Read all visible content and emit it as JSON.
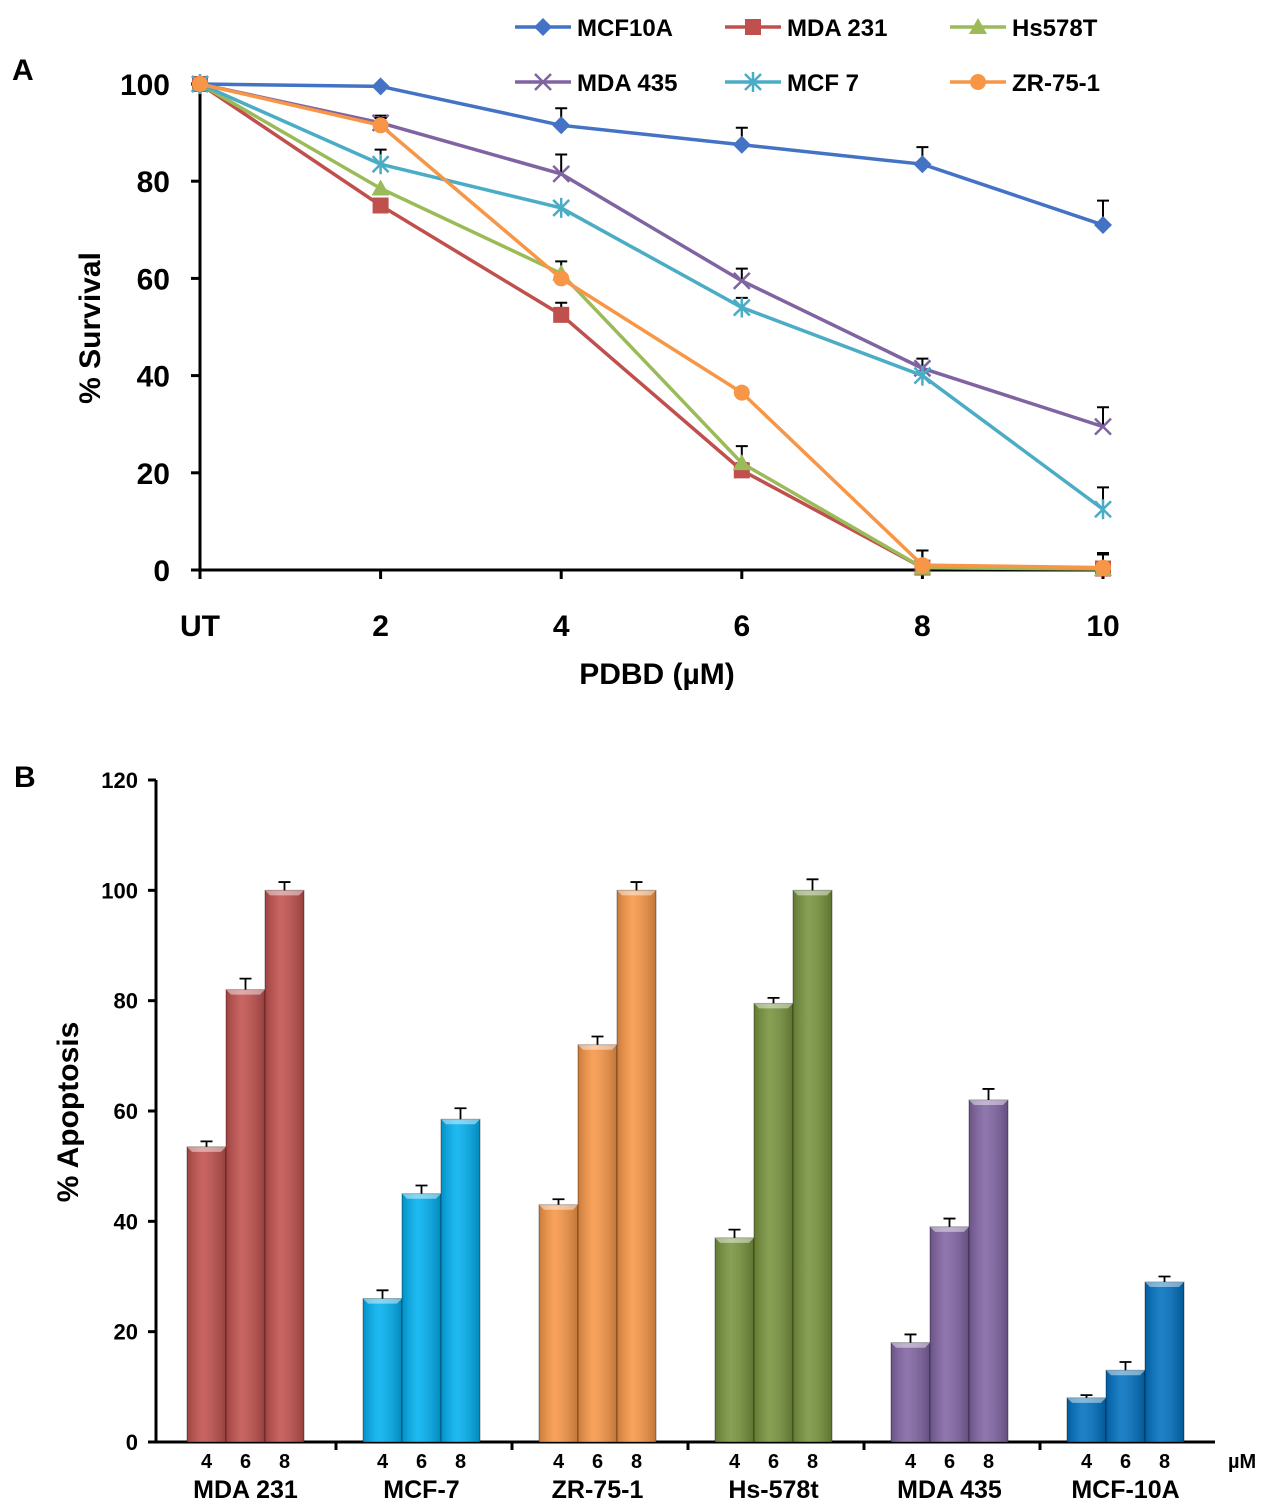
{
  "panels": [
    {
      "panel_label": "A",
      "chart_data": {
        "type": "line",
        "xlabel": "PDBD (µM)",
        "ylabel": "% Survival",
        "categories": [
          "UT",
          "2",
          "4",
          "6",
          "8",
          "10"
        ],
        "ylim": [
          0,
          100
        ],
        "yticks": [
          0,
          20,
          40,
          60,
          80,
          100
        ],
        "grid": false,
        "legend_position": "top",
        "series": [
          {
            "name": "MCF10A",
            "color": "#4472C4",
            "marker": "diamond",
            "values": [
              100,
              99.5,
              91.5,
              87.5,
              83.5,
              71
            ],
            "errors": [
              0,
              0,
              3.5,
              3.5,
              3.5,
              5
            ]
          },
          {
            "name": "MDA 231",
            "color": "#C0504D",
            "marker": "square",
            "values": [
              100,
              75,
              52.5,
              20.5,
              0.5,
              0.3
            ],
            "errors": [
              0,
              0,
              2.5,
              1.5,
              3.5,
              3
            ]
          },
          {
            "name": "Hs578T",
            "color": "#9BBB59",
            "marker": "triangle",
            "values": [
              100,
              78.5,
              61,
              22,
              0.5,
              0.2
            ],
            "errors": [
              0,
              0,
              2.5,
              3.5,
              3.5,
              3
            ]
          },
          {
            "name": "MDA 435",
            "color": "#8064A2",
            "marker": "x",
            "values": [
              100,
              92,
              81.5,
              59.5,
              41.5,
              29.5
            ],
            "errors": [
              0,
              1.5,
              4,
              2.5,
              2,
              4
            ]
          },
          {
            "name": "MCF 7",
            "color": "#4BACC6",
            "marker": "star",
            "values": [
              100,
              83.5,
              74.5,
              54,
              40,
              12.5
            ],
            "errors": [
              0,
              3,
              0,
              2,
              0,
              4.5
            ]
          },
          {
            "name": "ZR-75-1",
            "color": "#F79646",
            "marker": "circle",
            "values": [
              100,
              91.5,
              60,
              36.5,
              1,
              0.5
            ],
            "errors": [
              0,
              1.5,
              0,
              0,
              3,
              3
            ]
          }
        ]
      }
    },
    {
      "panel_label": "B",
      "chart_data": {
        "type": "bar",
        "ylabel": "% Apoptosis",
        "unit_label": "µM",
        "ylim": [
          0,
          120
        ],
        "yticks": [
          0,
          20,
          40,
          60,
          80,
          100,
          120
        ],
        "grid": false,
        "doses": [
          "4",
          "6",
          "8"
        ],
        "groups": [
          {
            "name": "MDA 231",
            "color": "#C0504D",
            "values": [
              53.5,
              82,
              100
            ],
            "errors": [
              1,
              2,
              1.5
            ]
          },
          {
            "name": "MCF-7",
            "color": "#00B0F0",
            "values": [
              26,
              45,
              58.5
            ],
            "errors": [
              1.5,
              1.5,
              2
            ]
          },
          {
            "name": "ZR-75-1",
            "color": "#F79646",
            "values": [
              43,
              72,
              100
            ],
            "errors": [
              1,
              1.5,
              1.5
            ]
          },
          {
            "name": "Hs-578t",
            "color": "#77933C",
            "values": [
              37,
              79.5,
              100
            ],
            "errors": [
              1.5,
              1,
              2
            ]
          },
          {
            "name": "MDA 435",
            "color": "#8064A2",
            "values": [
              18,
              39,
              62
            ],
            "errors": [
              1.5,
              1.5,
              2
            ]
          },
          {
            "name": "MCF-10A",
            "color": "#0070C0",
            "values": [
              8,
              13,
              29
            ],
            "errors": [
              0.5,
              1.5,
              1
            ]
          }
        ]
      }
    }
  ]
}
